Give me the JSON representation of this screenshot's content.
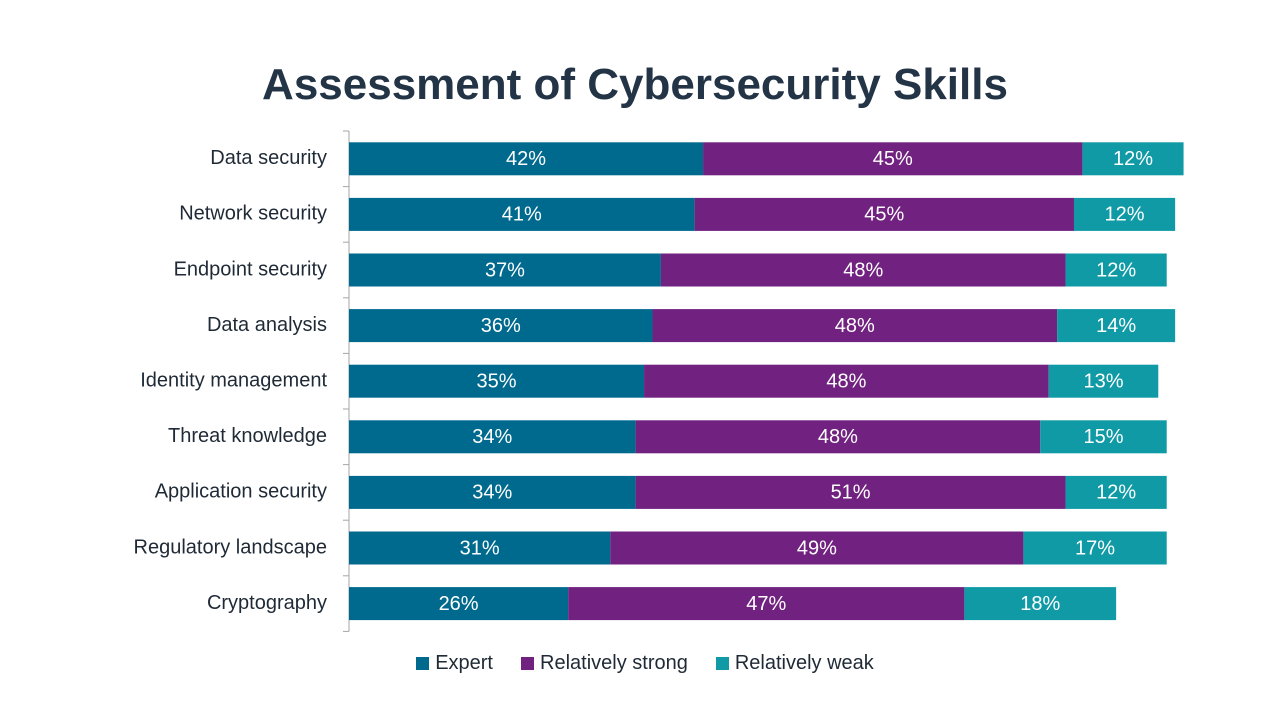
{
  "chart_data": {
    "type": "bar",
    "orientation": "horizontal",
    "stacked": true,
    "title": "Assessment of Cybersecurity Skills",
    "categories": [
      "Data security",
      "Network security",
      "Endpoint security",
      "Data analysis",
      "Identity management",
      "Threat knowledge",
      "Application security",
      "Regulatory landscape",
      "Cryptography"
    ],
    "series": [
      {
        "name": "Expert",
        "color": "#006a8e",
        "values": [
          42,
          41,
          37,
          36,
          35,
          34,
          34,
          31,
          26
        ],
        "labels": [
          "42%",
          "41%",
          "37%",
          "36%",
          "35%",
          "34%",
          "34%",
          "31%",
          "26%"
        ]
      },
      {
        "name": "Relatively strong",
        "color": "#71217f",
        "values": [
          45,
          45,
          48,
          48,
          48,
          48,
          51,
          49,
          47
        ],
        "labels": [
          "45%",
          "45%",
          "48%",
          "48%",
          "48%",
          "48%",
          "51%",
          "49%",
          "47%"
        ]
      },
      {
        "name": "Relatively weak",
        "color": "#0f9aa6",
        "values": [
          12,
          12,
          12,
          14,
          13,
          15,
          12,
          17,
          18
        ],
        "labels": [
          "12%",
          "12%",
          "12%",
          "14%",
          "13%",
          "15%",
          "12%",
          "17%",
          "18%"
        ]
      }
    ],
    "xlim": [
      0,
      100
    ],
    "grid": false,
    "legend_position": "bottom"
  }
}
